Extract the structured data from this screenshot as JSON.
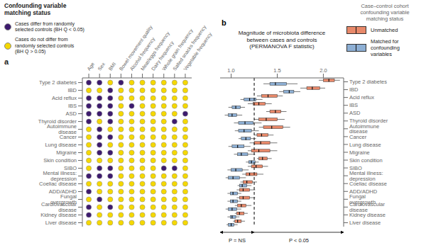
{
  "chart_data": [
    {
      "type": "dot_matrix",
      "panel_label": "a",
      "legend_title": "Confounding variable\nmatching status",
      "categories": [
        "Age",
        "Sex",
        "BMI",
        "Bowel movement quality",
        "Alcohol frequency",
        "Meat/eggs frequency",
        "Dairy frequency",
        "Whole grain frequency",
        "Salted snacks frequency",
        "Vegetable frequency"
      ],
      "rows": [
        "Type 2 diabetes",
        "IBD",
        "Acid reflux",
        "IBS",
        "ASD",
        "Thyroid disorder",
        "Autoimmune disease",
        "Cancer",
        "Lung disease",
        "Migraine",
        "Skin condition",
        "SIBO",
        "Mental illness: depression",
        "Coeliac disease",
        "ADD/ADHD",
        "Fungal overgrowth",
        "Cardiovascular disease",
        "Kidney disease",
        "Liver disease"
      ],
      "cells": [
        [
          1,
          1,
          0,
          1,
          0,
          0,
          0,
          0,
          0,
          0
        ],
        [
          0,
          0,
          1,
          0,
          0,
          0,
          0,
          0,
          0,
          0
        ],
        [
          1,
          1,
          1,
          0,
          0,
          0,
          0,
          0,
          0,
          0
        ],
        [
          1,
          1,
          1,
          0,
          1,
          0,
          0,
          0,
          0,
          0
        ],
        [
          1,
          1,
          1,
          0,
          0,
          0,
          0,
          0,
          0,
          1
        ],
        [
          1,
          0,
          1,
          0,
          0,
          0,
          0,
          0,
          1,
          0
        ],
        [
          0,
          1,
          0,
          0,
          0,
          0,
          0,
          0,
          0,
          0
        ],
        [
          0,
          1,
          1,
          0,
          0,
          0,
          0,
          0,
          0,
          0
        ],
        [
          0,
          1,
          0,
          0,
          0,
          0,
          0,
          0,
          0,
          0
        ],
        [
          0,
          1,
          1,
          0,
          0,
          0,
          0,
          0,
          0,
          0
        ],
        [
          0,
          0,
          0,
          0,
          0,
          0,
          0,
          0,
          0,
          0
        ],
        [
          0,
          1,
          1,
          0,
          0,
          0,
          0,
          1,
          1,
          0
        ],
        [
          1,
          1,
          1,
          0,
          0,
          0,
          0,
          0,
          0,
          0
        ],
        [
          0,
          0,
          0,
          0,
          0,
          0,
          0,
          0,
          0,
          0
        ],
        [
          1,
          0,
          0,
          0,
          0,
          0,
          0,
          0,
          0,
          0
        ],
        [
          0,
          1,
          0,
          0,
          0,
          0,
          0,
          0,
          0,
          0
        ],
        [
          1,
          0,
          1,
          0,
          0,
          0,
          0,
          0,
          0,
          0
        ],
        [
          1,
          0,
          0,
          0,
          0,
          0,
          0,
          0,
          0,
          0
        ],
        [
          0,
          0,
          0,
          0,
          0,
          0,
          0,
          0,
          0,
          0
        ]
      ],
      "series": [
        {
          "name": "Cases differ from randomly\nselected controls (BH Q < 0.05)",
          "color": "#3d1a6e",
          "value": 1
        },
        {
          "name": "Cases do not differ from\nrandomly selected controls\n(BH Q > 0.05)",
          "color": "#f5d800",
          "value": 0
        }
      ]
    },
    {
      "type": "box",
      "orientation": "horizontal",
      "panel_label": "b",
      "title": "Magnitude of microbiota difference\nbetween cases and controls\n(PERMANOVA F statistic)",
      "legend_title": "Case–control cohort\nconfounding variable\nmatching status",
      "categories": [
        "Type 2 diabetes",
        "IBD",
        "Acid reflux",
        "IBS",
        "ASD",
        "Thyroid disorder",
        "Autoimmune disease",
        "Cancer",
        "Lung disease",
        "Migraine",
        "Skin condition",
        "SIBO",
        "Mental illness: depression",
        "Coeliac disease",
        "ADD/ADHD",
        "Fungal overgrowth",
        "Cardiovascular disease",
        "Kidney disease",
        "Liver disease"
      ],
      "series": [
        {
          "name": "Unmatched",
          "color": "#e8896a",
          "values": [
            [
              1.95,
              2.0,
              2.06,
              2.12,
              2.18
            ],
            [
              1.75,
              1.82,
              1.88,
              1.96,
              2.02
            ],
            [
              1.28,
              1.33,
              1.4,
              1.5,
              1.56
            ],
            [
              1.18,
              1.24,
              1.3,
              1.37,
              1.44
            ],
            [
              1.38,
              1.42,
              1.48,
              1.54,
              1.6
            ],
            [
              1.25,
              1.3,
              1.38,
              1.5,
              1.58
            ],
            [
              1.3,
              1.35,
              1.44,
              1.56,
              1.64
            ],
            [
              1.25,
              1.28,
              1.33,
              1.4,
              1.46
            ],
            [
              1.2,
              1.25,
              1.32,
              1.42,
              1.5
            ],
            [
              1.18,
              1.22,
              1.3,
              1.42,
              1.5
            ],
            [
              1.28,
              1.3,
              1.34,
              1.39,
              1.44
            ],
            [
              1.18,
              1.22,
              1.27,
              1.34,
              1.4
            ],
            [
              1.12,
              1.16,
              1.2,
              1.28,
              1.35
            ],
            [
              1.1,
              1.13,
              1.17,
              1.23,
              1.28
            ],
            [
              1.06,
              1.09,
              1.13,
              1.2,
              1.26
            ],
            [
              1.06,
              1.09,
              1.13,
              1.2,
              1.26
            ],
            [
              1.04,
              1.07,
              1.11,
              1.16,
              1.22
            ],
            [
              1.04,
              1.06,
              1.09,
              1.14,
              1.18
            ],
            [
              1.02,
              1.04,
              1.07,
              1.11,
              1.15
            ]
          ]
        },
        {
          "name": "Matched for\nconfounding\nvariables",
          "color": "#8dafd4",
          "values": [
            [
              1.35,
              1.42,
              1.48,
              1.6,
              1.72
            ],
            [
              1.52,
              1.57,
              1.63,
              1.68,
              1.75
            ],
            [
              1.1,
              1.14,
              1.2,
              1.27,
              1.34
            ],
            [
              0.97,
              1.01,
              1.05,
              1.1,
              1.15
            ],
            [
              0.93,
              0.97,
              1.01,
              1.06,
              1.12
            ],
            [
              1.03,
              1.08,
              1.15,
              1.24,
              1.33
            ],
            [
              1.04,
              1.08,
              1.14,
              1.22,
              1.3
            ],
            [
              1.08,
              1.11,
              1.16,
              1.21,
              1.27
            ],
            [
              0.97,
              1.01,
              1.07,
              1.14,
              1.21
            ],
            [
              1.03,
              1.07,
              1.11,
              1.18,
              1.26
            ],
            [
              1.16,
              1.19,
              1.22,
              1.26,
              1.3
            ],
            [
              0.96,
              1.0,
              1.05,
              1.12,
              1.19
            ],
            [
              0.94,
              0.97,
              1.02,
              1.09,
              1.16
            ],
            [
              1.07,
              1.09,
              1.12,
              1.17,
              1.22
            ],
            [
              0.96,
              0.99,
              1.02,
              1.07,
              1.11
            ],
            [
              0.96,
              0.99,
              1.02,
              1.07,
              1.11
            ],
            [
              0.94,
              0.97,
              1.01,
              1.06,
              1.11
            ],
            [
              0.96,
              0.99,
              1.01,
              1.05,
              1.09
            ],
            [
              0.95,
              0.97,
              1.0,
              1.03,
              1.07
            ]
          ]
        }
      ],
      "xlim": [
        0.88,
        2.22
      ],
      "xticks": [
        {
          "value": 1.0,
          "label": "1.0"
        },
        {
          "value": 1.5,
          "label": "1.5"
        },
        {
          "value": 2.0,
          "label": "2.0"
        }
      ],
      "reference_line": 1.25,
      "annotations": [
        {
          "text": "P = NS",
          "x_range": [
            0.88,
            1.25
          ],
          "arrow": "both"
        },
        {
          "text": "P < 0.05",
          "x_range": [
            1.25,
            2.22
          ],
          "arrow": "end"
        }
      ]
    }
  ]
}
